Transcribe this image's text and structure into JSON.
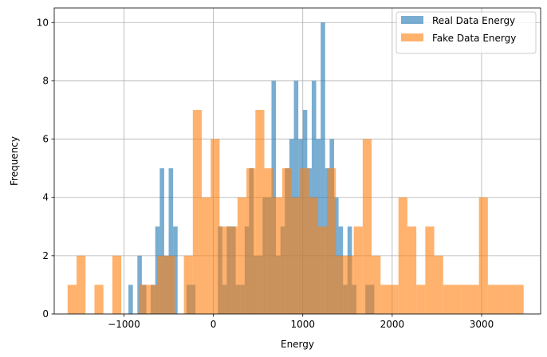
{
  "chart_data": {
    "type": "bar",
    "title": "",
    "xlabel": "Energy",
    "ylabel": "Frequency",
    "xlim": [
      -1780,
      3660
    ],
    "ylim": [
      0,
      10.5
    ],
    "grid": true,
    "legend_position": "top-right",
    "xticks": [
      -1000,
      0,
      1000,
      2000,
      3000
    ],
    "xtick_labels": [
      "−1000",
      "0",
      "1000",
      "2000",
      "3000"
    ],
    "yticks": [
      0,
      2,
      4,
      6,
      8,
      10
    ],
    "ytick_labels": [
      "0",
      "2",
      "4",
      "6",
      "8",
      "10"
    ],
    "series": [
      {
        "name": "Real Data Energy",
        "color": "#1f77b4",
        "opacity": 0.6,
        "bins": [
          [
            -950,
            -900,
            1
          ],
          [
            -850,
            -800,
            2
          ],
          [
            -800,
            -750,
            1
          ],
          [
            -700,
            -650,
            1
          ],
          [
            -650,
            -600,
            3
          ],
          [
            -600,
            -550,
            5
          ],
          [
            -550,
            -500,
            2
          ],
          [
            -500,
            -450,
            5
          ],
          [
            -450,
            -400,
            3
          ],
          [
            -300,
            -250,
            1
          ],
          [
            -250,
            -200,
            1
          ],
          [
            50,
            100,
            3
          ],
          [
            100,
            150,
            1
          ],
          [
            150,
            200,
            3
          ],
          [
            200,
            250,
            3
          ],
          [
            250,
            300,
            1
          ],
          [
            300,
            350,
            1
          ],
          [
            350,
            400,
            3
          ],
          [
            400,
            450,
            5
          ],
          [
            450,
            500,
            2
          ],
          [
            500,
            550,
            2
          ],
          [
            550,
            600,
            4
          ],
          [
            600,
            650,
            4
          ],
          [
            650,
            700,
            8
          ],
          [
            700,
            750,
            2
          ],
          [
            750,
            800,
            3
          ],
          [
            800,
            850,
            5
          ],
          [
            850,
            900,
            6
          ],
          [
            900,
            950,
            8
          ],
          [
            950,
            1000,
            6
          ],
          [
            1000,
            1050,
            7
          ],
          [
            1050,
            1100,
            5
          ],
          [
            1100,
            1150,
            8
          ],
          [
            1150,
            1200,
            6
          ],
          [
            1200,
            1250,
            10
          ],
          [
            1250,
            1300,
            5
          ],
          [
            1300,
            1350,
            6
          ],
          [
            1350,
            1400,
            4
          ],
          [
            1400,
            1450,
            3
          ],
          [
            1450,
            1500,
            1
          ],
          [
            1500,
            1550,
            3
          ],
          [
            1550,
            1600,
            1
          ],
          [
            1700,
            1750,
            1
          ],
          [
            1750,
            1800,
            1
          ]
        ]
      },
      {
        "name": "Fake Data Energy",
        "color": "#ff7f0e",
        "opacity": 0.6,
        "bins": [
          [
            -1630,
            -1530,
            1
          ],
          [
            -1530,
            -1430,
            2
          ],
          [
            -1330,
            -1230,
            1
          ],
          [
            -1130,
            -1030,
            2
          ],
          [
            -830,
            -730,
            1
          ],
          [
            -730,
            -630,
            1
          ],
          [
            -630,
            -530,
            2
          ],
          [
            -530,
            -430,
            2
          ],
          [
            -330,
            -230,
            2
          ],
          [
            -230,
            -130,
            7
          ],
          [
            -130,
            -30,
            4
          ],
          [
            -30,
            70,
            6
          ],
          [
            70,
            170,
            3
          ],
          [
            170,
            270,
            3
          ],
          [
            270,
            370,
            4
          ],
          [
            370,
            470,
            5
          ],
          [
            470,
            570,
            7
          ],
          [
            570,
            670,
            5
          ],
          [
            670,
            770,
            4
          ],
          [
            770,
            870,
            5
          ],
          [
            870,
            970,
            4
          ],
          [
            970,
            1070,
            5
          ],
          [
            1070,
            1170,
            4
          ],
          [
            1170,
            1270,
            3
          ],
          [
            1270,
            1370,
            5
          ],
          [
            1370,
            1470,
            2
          ],
          [
            1470,
            1570,
            2
          ],
          [
            1570,
            1670,
            3
          ],
          [
            1670,
            1770,
            6
          ],
          [
            1770,
            1870,
            2
          ],
          [
            1870,
            1970,
            1
          ],
          [
            1970,
            2070,
            1
          ],
          [
            2070,
            2170,
            4
          ],
          [
            2170,
            2270,
            3
          ],
          [
            2270,
            2370,
            1
          ],
          [
            2370,
            2470,
            3
          ],
          [
            2470,
            2570,
            2
          ],
          [
            2570,
            2670,
            1
          ],
          [
            2670,
            2770,
            1
          ],
          [
            2770,
            2870,
            1
          ],
          [
            2870,
            2970,
            1
          ],
          [
            2970,
            3070,
            4
          ],
          [
            3070,
            3170,
            1
          ],
          [
            3170,
            3270,
            1
          ],
          [
            3270,
            3370,
            1
          ],
          [
            3370,
            3470,
            1
          ]
        ]
      }
    ]
  }
}
